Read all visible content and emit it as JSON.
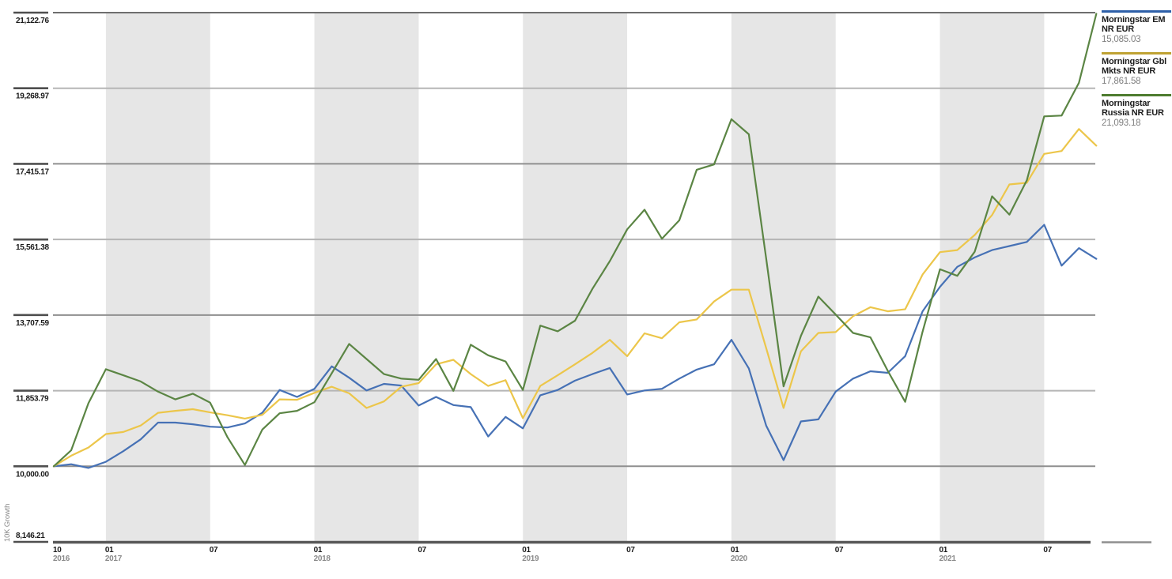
{
  "colors": {
    "background": "#ffffff",
    "band_fill": "#e6e6e6",
    "grid_dark": "#8f8f8f",
    "grid_light": "#b5b5b5",
    "top_border": "#6e6e6e",
    "axis_bottom": "#585858",
    "tick_segment": "#4f4f4f",
    "tick_label": "#1a1a1a",
    "year_label": "#8a8a8a",
    "axis_title": "#8a8a8a"
  },
  "legend": {
    "items": [
      {
        "name": "Morningstar EM NR EUR",
        "value": "15,085.03",
        "rule_color": "#2d5fa8"
      },
      {
        "name": "Morningstar Gbl Mkts NR EUR",
        "value": "17,861.58",
        "rule_color": "#bfa233"
      },
      {
        "name": "Morningstar Russia NR EUR",
        "value": "21,093.18",
        "rule_color": "#4e7c2f"
      }
    ]
  },
  "chart_data": {
    "type": "line",
    "title": "",
    "ylabel": "10K Growth",
    "grid": true,
    "legend_position": "top-right",
    "ylim": [
      8146.21,
      21122.76
    ],
    "y_ticks": [
      {
        "value": 21122.76,
        "label": "21,122.76"
      },
      {
        "value": 19268.97,
        "label": "19,268.97"
      },
      {
        "value": 17415.17,
        "label": "17,415.17"
      },
      {
        "value": 15561.38,
        "label": "15,561.38"
      },
      {
        "value": 13707.59,
        "label": "13,707.59"
      },
      {
        "value": 11853.79,
        "label": "11,853.79"
      },
      {
        "value": 10000.0,
        "label": "10,000.00"
      },
      {
        "value": 8146.21,
        "label": "8,146.21"
      }
    ],
    "x_start": "2016-10",
    "x_points_monthly": true,
    "x_ticks": [
      {
        "month_index": 0,
        "month": "10",
        "year": "2016"
      },
      {
        "month_index": 3,
        "month": "01",
        "year": "2017"
      },
      {
        "month_index": 9,
        "month": "07",
        "year": ""
      },
      {
        "month_index": 15,
        "month": "01",
        "year": "2018"
      },
      {
        "month_index": 21,
        "month": "07",
        "year": ""
      },
      {
        "month_index": 27,
        "month": "01",
        "year": "2019"
      },
      {
        "month_index": 33,
        "month": "07",
        "year": ""
      },
      {
        "month_index": 39,
        "month": "01",
        "year": "2020"
      },
      {
        "month_index": 45,
        "month": "07",
        "year": ""
      },
      {
        "month_index": 51,
        "month": "01",
        "year": "2021"
      },
      {
        "month_index": 57,
        "month": "07",
        "year": ""
      }
    ],
    "shaded_band_month_ranges": [
      [
        3,
        9
      ],
      [
        15,
        21
      ],
      [
        27,
        33
      ],
      [
        39,
        45
      ],
      [
        51,
        57
      ]
    ],
    "series": [
      {
        "name": "Morningstar EM NR EUR",
        "color": "#4671b5",
        "final_value_label": "15,085.03",
        "values": [
          10000,
          10050,
          9960,
          10110,
          10370,
          10660,
          11070,
          11070,
          11030,
          10970,
          10950,
          11050,
          11310,
          11870,
          11700,
          11900,
          12450,
          12170,
          11860,
          12020,
          11980,
          11490,
          11700,
          11500,
          11450,
          10730,
          11210,
          10930,
          11740,
          11870,
          12100,
          12260,
          12410,
          11760,
          11860,
          11900,
          12150,
          12370,
          12500,
          13100,
          12400,
          11000,
          10150,
          11100,
          11150,
          11830,
          12150,
          12330,
          12290,
          12700,
          13800,
          14400,
          14890,
          15120,
          15300,
          15400,
          15500,
          15920,
          14920,
          15350,
          15085.03
        ]
      },
      {
        "name": "Morningstar Gbl Mkts NR EUR",
        "color": "#ecc64a",
        "final_value_label": "17,861.58",
        "values": [
          10000,
          10260,
          10460,
          10790,
          10840,
          11000,
          11310,
          11360,
          11400,
          11320,
          11250,
          11170,
          11260,
          11640,
          11630,
          11800,
          11950,
          11790,
          11430,
          11590,
          11950,
          12040,
          12500,
          12610,
          12260,
          11970,
          12110,
          11180,
          11970,
          12230,
          12500,
          12780,
          13100,
          12700,
          13260,
          13140,
          13530,
          13600,
          14040,
          14330,
          14330,
          12900,
          11430,
          12820,
          13270,
          13290,
          13680,
          13900,
          13800,
          13850,
          14700,
          15250,
          15300,
          15670,
          16160,
          16910,
          16950,
          17660,
          17730,
          18270,
          17861.58
        ]
      },
      {
        "name": "Morningstar Russia NR EUR",
        "color": "#5b8544",
        "final_value_label": "21,093.18",
        "values": [
          10000,
          10390,
          11550,
          12380,
          12230,
          12080,
          11830,
          11640,
          11780,
          11560,
          10710,
          10030,
          10900,
          11300,
          11360,
          11570,
          12280,
          13000,
          12630,
          12260,
          12150,
          12120,
          12630,
          11850,
          12980,
          12720,
          12570,
          11870,
          13450,
          13310,
          13570,
          14350,
          15030,
          15810,
          16290,
          15580,
          16030,
          17270,
          17400,
          18510,
          18140,
          15100,
          11960,
          13200,
          14160,
          13720,
          13270,
          13160,
          12340,
          11580,
          13300,
          14830,
          14670,
          15260,
          16620,
          16170,
          17010,
          18580,
          18600,
          19400,
          21093.18
        ]
      }
    ]
  }
}
